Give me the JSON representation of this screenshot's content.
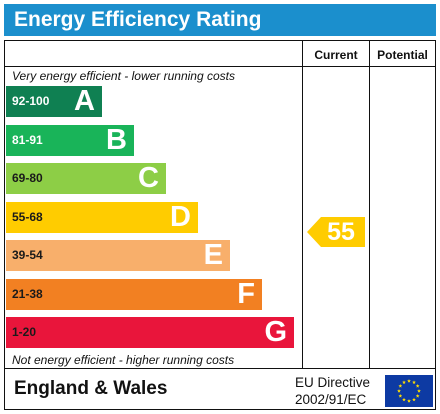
{
  "header": {
    "title": "Energy Efficiency Rating"
  },
  "columns": {
    "current": "Current",
    "potential": "Potential"
  },
  "notes": {
    "top": "Very energy efficient - lower running costs",
    "bottom": "Not energy efficient - higher running costs"
  },
  "bands": [
    {
      "range": "92-100",
      "letter": "A",
      "color": "#0f8052",
      "range_color": "#ffffff"
    },
    {
      "range": "81-91",
      "letter": "B",
      "color": "#19b459",
      "range_color": "#ffffff"
    },
    {
      "range": "69-80",
      "letter": "C",
      "color": "#8dce46",
      "range_color": "#1a1a1a"
    },
    {
      "range": "55-68",
      "letter": "D",
      "color": "#ffcc00",
      "range_color": "#1a1a1a"
    },
    {
      "range": "39-54",
      "letter": "E",
      "color": "#f8af6b",
      "range_color": "#1a1a1a"
    },
    {
      "range": "21-38",
      "letter": "F",
      "color": "#f28022",
      "range_color": "#1a1a1a"
    },
    {
      "range": "1-20",
      "letter": "G",
      "color": "#e9153b",
      "range_color": "#1a1a1a"
    }
  ],
  "current_rating": {
    "value": "55",
    "band": "D",
    "color": "#ffcc00"
  },
  "footer": {
    "region": "England & Wales",
    "directive_line1": "EU Directive",
    "directive_line2": "2002/91/EC",
    "flag_icon": "eu-flag-icon",
    "flag_color": "#0d3aa3",
    "star_color": "#ffdd00"
  }
}
